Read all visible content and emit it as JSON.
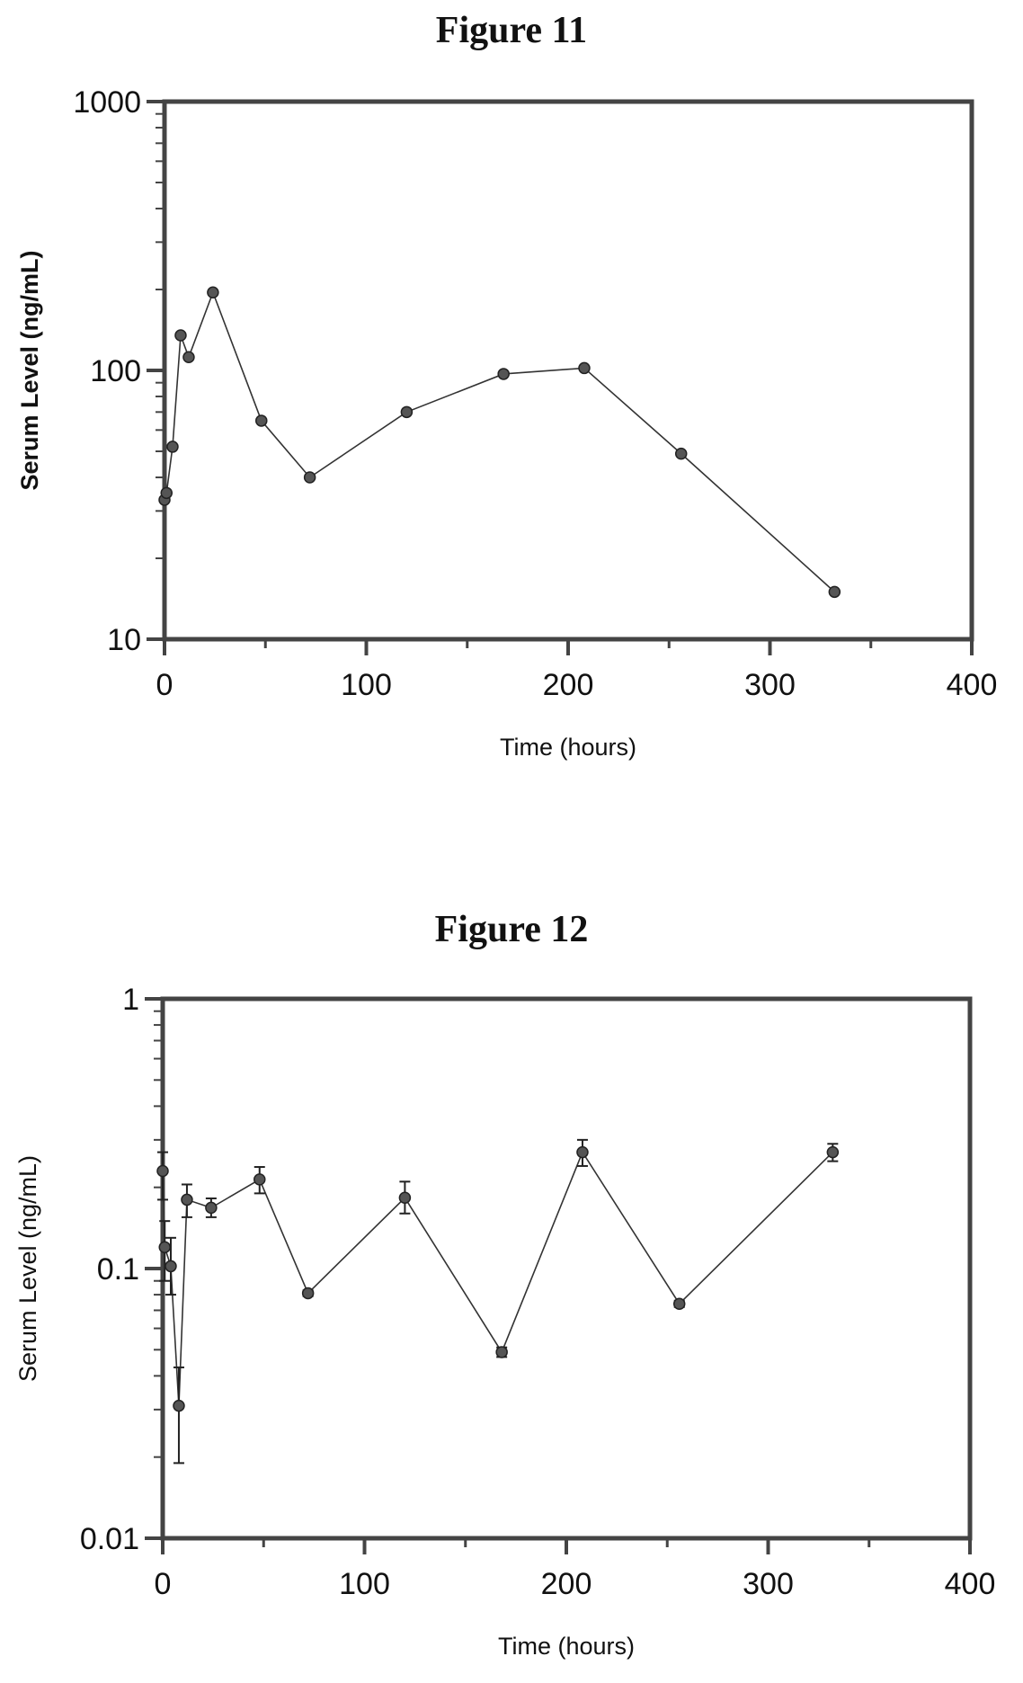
{
  "chart_data": [
    {
      "type": "line",
      "title": "Figure 11",
      "xlabel": "Time (hours)",
      "ylabel": "Serum Level (ng/mL)",
      "xlim": [
        0,
        400
      ],
      "ylim": [
        10,
        1000
      ],
      "y_scale": "log",
      "x_ticks": [
        "0",
        "100",
        "200",
        "300",
        "400"
      ],
      "y_ticks": [
        "10",
        "100",
        "1000"
      ],
      "grid": false,
      "series": [
        {
          "x": [
            0,
            1,
            4,
            8,
            12,
            24,
            48,
            72,
            120,
            168,
            208,
            256,
            332
          ],
          "y": [
            33,
            35,
            52,
            135,
            112,
            195,
            65,
            40,
            70,
            97,
            102,
            49,
            15
          ]
        }
      ]
    },
    {
      "type": "line",
      "title": "Figure 12",
      "xlabel": "Time (hours)",
      "ylabel": "Serum Level (ng/mL)",
      "xlim": [
        0,
        400
      ],
      "ylim": [
        0.01,
        1
      ],
      "y_scale": "log",
      "x_ticks": [
        "0",
        "100",
        "200",
        "300",
        "400"
      ],
      "y_ticks": [
        "0.01",
        "0.1",
        "1"
      ],
      "grid": false,
      "series": [
        {
          "x": [
            0,
            1,
            4,
            8,
            12,
            24,
            48,
            72,
            120,
            168,
            208,
            256,
            332
          ],
          "y": [
            0.23,
            0.12,
            0.102,
            0.031,
            0.18,
            0.168,
            0.214,
            0.081,
            0.183,
            0.049,
            0.27,
            0.074,
            0.27
          ],
          "err_low": [
            0.18,
            0.09,
            0.08,
            0.019,
            0.155,
            0.155,
            0.19,
            0.079,
            0.16,
            0.047,
            0.24,
            0.072,
            0.25
          ],
          "err_high": [
            0.27,
            0.15,
            0.13,
            0.043,
            0.205,
            0.182,
            0.238,
            0.083,
            0.21,
            0.051,
            0.3,
            0.076,
            0.29
          ]
        }
      ]
    }
  ]
}
